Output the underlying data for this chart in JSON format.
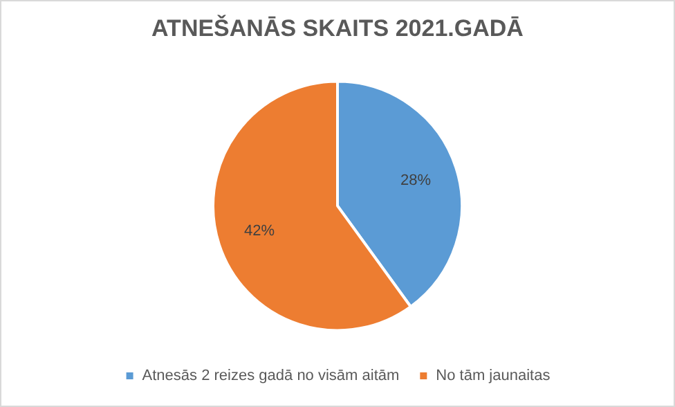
{
  "chart_data": {
    "type": "pie",
    "title": "ATNEŠANĀS SKAITS 2021.GADĀ",
    "categories": [
      "Atnesās 2 reizes gadā no visām aitām",
      "No tām jaunaitas"
    ],
    "values": [
      28,
      42
    ],
    "colors": [
      "#5b9bd5",
      "#ed7d31"
    ],
    "value_labels": [
      "28%",
      "42%"
    ],
    "legend": "bottom"
  }
}
